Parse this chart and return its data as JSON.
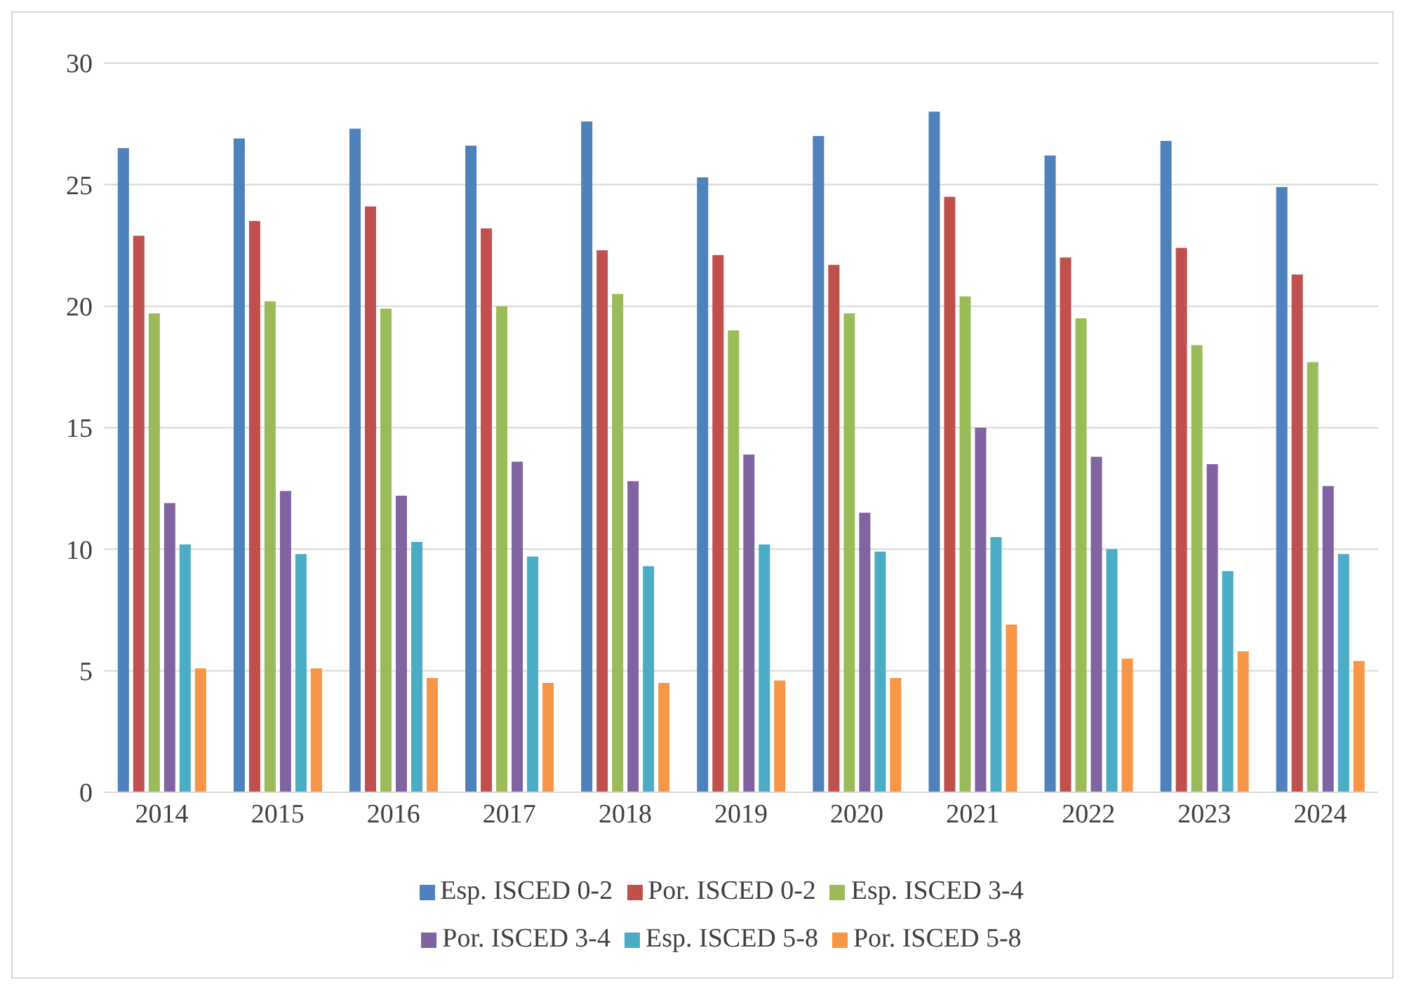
{
  "chart_data": {
    "type": "bar",
    "categories": [
      "2014",
      "2015",
      "2016",
      "2017",
      "2018",
      "2019",
      "2020",
      "2021",
      "2022",
      "2023",
      "2024"
    ],
    "series": [
      {
        "name": "Esp. ISCED 0-2",
        "color": "#4f81bd",
        "values": [
          26.5,
          26.9,
          27.3,
          26.6,
          27.6,
          25.3,
          27.0,
          28.0,
          26.2,
          26.8,
          24.9
        ]
      },
      {
        "name": "Por. ISCED 0-2",
        "color": "#c0504d",
        "values": [
          22.9,
          23.5,
          24.1,
          23.2,
          22.3,
          22.1,
          21.7,
          24.5,
          22.0,
          22.4,
          21.3
        ]
      },
      {
        "name": "Esp. ISCED 3-4",
        "color": "#9bbb59",
        "values": [
          19.7,
          20.2,
          19.9,
          20.0,
          20.5,
          19.0,
          19.7,
          20.4,
          19.5,
          18.4,
          17.7
        ]
      },
      {
        "name": "Por. ISCED 3-4",
        "color": "#8064a2",
        "values": [
          11.9,
          12.4,
          12.2,
          13.6,
          12.8,
          13.9,
          11.5,
          15.0,
          13.8,
          13.5,
          12.6
        ]
      },
      {
        "name": "Esp. ISCED 5-8",
        "color": "#4bacc6",
        "values": [
          10.2,
          9.8,
          10.3,
          9.7,
          9.3,
          10.2,
          9.9,
          10.5,
          10.0,
          9.1,
          9.8
        ]
      },
      {
        "name": "Por. ISCED 5-8",
        "color": "#f79646",
        "values": [
          5.1,
          5.1,
          4.7,
          4.5,
          4.5,
          4.6,
          4.7,
          6.9,
          5.5,
          5.8,
          5.4
        ]
      }
    ],
    "ylim": [
      0,
      30
    ],
    "yticks": [
      0,
      5,
      10,
      15,
      20,
      25,
      30
    ],
    "grid": "y",
    "legend": "bottom"
  }
}
